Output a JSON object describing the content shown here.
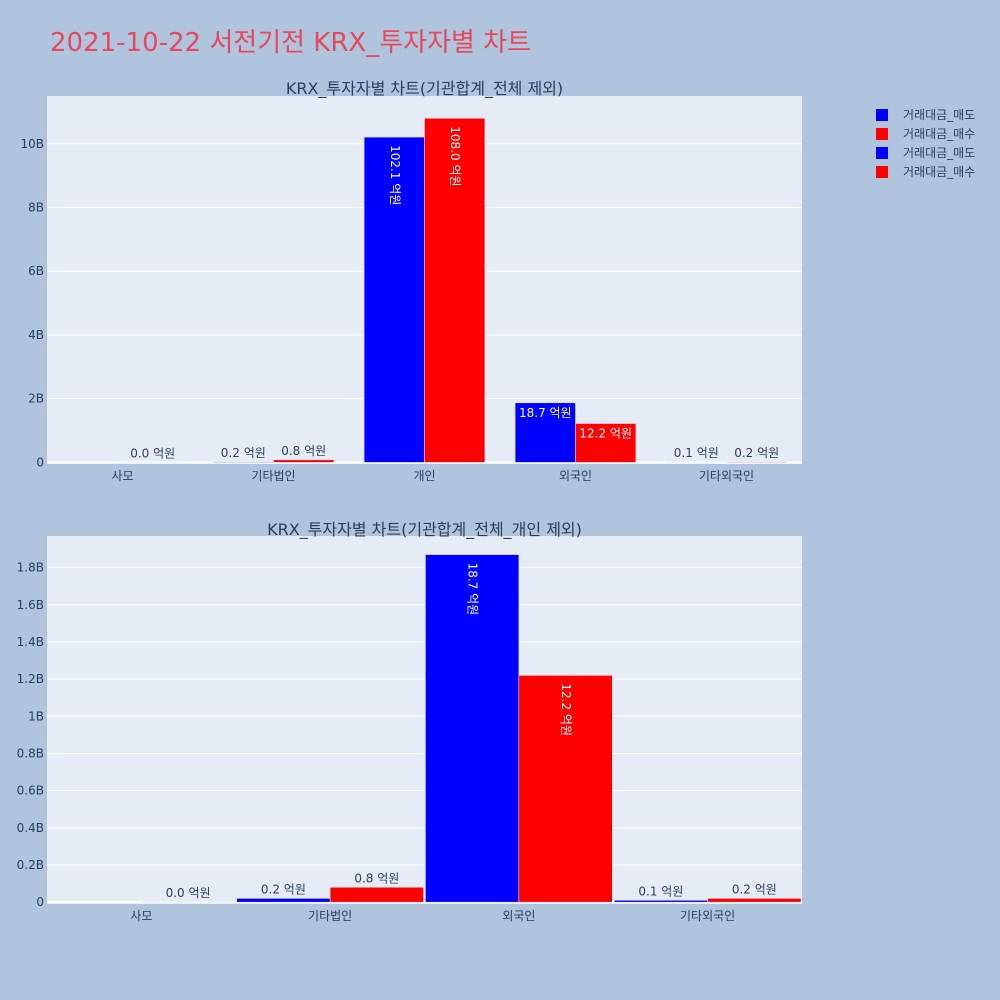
{
  "title": "2021-10-22 서전기전 KRX_투자자별 차트",
  "colors": {
    "sell": "#0000ff",
    "buy": "#ff0000",
    "title": "#e8495a"
  },
  "legend": [
    "거래대금_매도",
    "거래대금_매수",
    "거래대금_매도",
    "거래대금_매수"
  ],
  "chart_data": [
    {
      "type": "bar",
      "title": "KRX_투자자별 차트(기관합계_전체 제외)",
      "categories": [
        "사모",
        "기타법인",
        "개인",
        "외국인",
        "기타외국인"
      ],
      "yticks": [
        0,
        2000000000,
        4000000000,
        6000000000,
        8000000000,
        10000000000
      ],
      "ytick_labels": [
        "0",
        "2B",
        "4B",
        "6B",
        "8B",
        "10B"
      ],
      "ylim": [
        -50000000,
        11500000000
      ],
      "series": [
        {
          "name": "거래대금_매도",
          "values": [
            0,
            20000000,
            10210000000,
            1870000000,
            10000000
          ],
          "labels": [
            "",
            "0.2 억원",
            "102.1 억원",
            "18.7 억원",
            "0.1 억원"
          ]
        },
        {
          "name": "거래대금_매수",
          "values": [
            1000000,
            80000000,
            10800000000,
            1220000000,
            20000000
          ],
          "labels": [
            "0.0 억원",
            "0.8 억원",
            "108.0 억원",
            "12.2 억원",
            "0.2 억원"
          ]
        }
      ]
    },
    {
      "type": "bar",
      "title": "KRX_투자자별 차트(기관합계_전체_개인 제외)",
      "categories": [
        "사모",
        "기타법인",
        "외국인",
        "기타외국인"
      ],
      "yticks": [
        0,
        200000000,
        400000000,
        600000000,
        800000000,
        1000000000,
        1200000000,
        1400000000,
        1600000000,
        1800000000
      ],
      "ytick_labels": [
        "0",
        "0.2B",
        "0.4B",
        "0.6B",
        "0.8B",
        "1B",
        "1.2B",
        "1.4B",
        "1.6B",
        "1.8B"
      ],
      "ylim": [
        -10000000,
        1970000000
      ],
      "series": [
        {
          "name": "거래대금_매도",
          "values": [
            0,
            20000000,
            1870000000,
            10000000
          ],
          "labels": [
            "",
            "0.2 억원",
            "18.7 억원",
            "0.1 억원"
          ]
        },
        {
          "name": "거래대금_매수",
          "values": [
            1000000,
            80000000,
            1220000000,
            20000000
          ],
          "labels": [
            "0.0 억원",
            "0.8 억원",
            "12.2 억원",
            "0.2 억원"
          ]
        }
      ]
    }
  ]
}
